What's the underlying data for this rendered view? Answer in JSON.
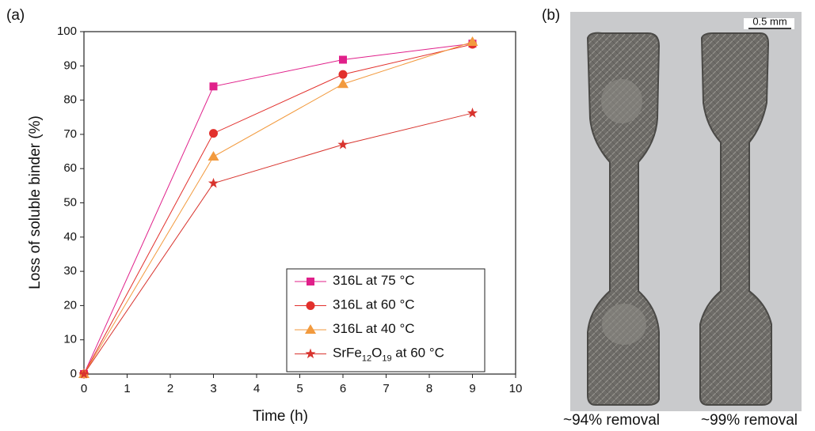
{
  "chart_data": {
    "type": "line",
    "xlabel": "Time (h)",
    "ylabel": "Loss of soluble binder (%)",
    "x": [
      0,
      3,
      6,
      9
    ],
    "series": [
      {
        "name": "316L at 75 °C",
        "color": "#e0208a",
        "marker": "square",
        "values": [
          0,
          84,
          91.8,
          96.5
        ]
      },
      {
        "name": "316L at 60 °C",
        "color": "#e2302c",
        "marker": "circle",
        "values": [
          0,
          70.3,
          87.5,
          96.3
        ]
      },
      {
        "name": "316L at 40 °C",
        "color": "#f29a3e",
        "marker": "triangle",
        "values": [
          0,
          63.5,
          84.7,
          97
        ]
      },
      {
        "name": "SrFe12O19 at 60 °C",
        "color": "#d8342e",
        "marker": "star",
        "values": [
          0,
          55.7,
          67,
          76.2
        ]
      }
    ],
    "xlim": [
      0,
      10
    ],
    "xticks": [
      0,
      1,
      2,
      3,
      4,
      5,
      6,
      7,
      8,
      9,
      10
    ],
    "ylim": [
      0,
      100
    ],
    "yticks": [
      0,
      10,
      20,
      30,
      40,
      50,
      60,
      70,
      80,
      90,
      100
    ],
    "legend": "lower right"
  },
  "panel_labels": [
    "(a)",
    "(b)"
  ],
  "photo": {
    "scale_bar": "0.5 mm",
    "captions": [
      "~94% removal",
      "~99% removal"
    ]
  }
}
